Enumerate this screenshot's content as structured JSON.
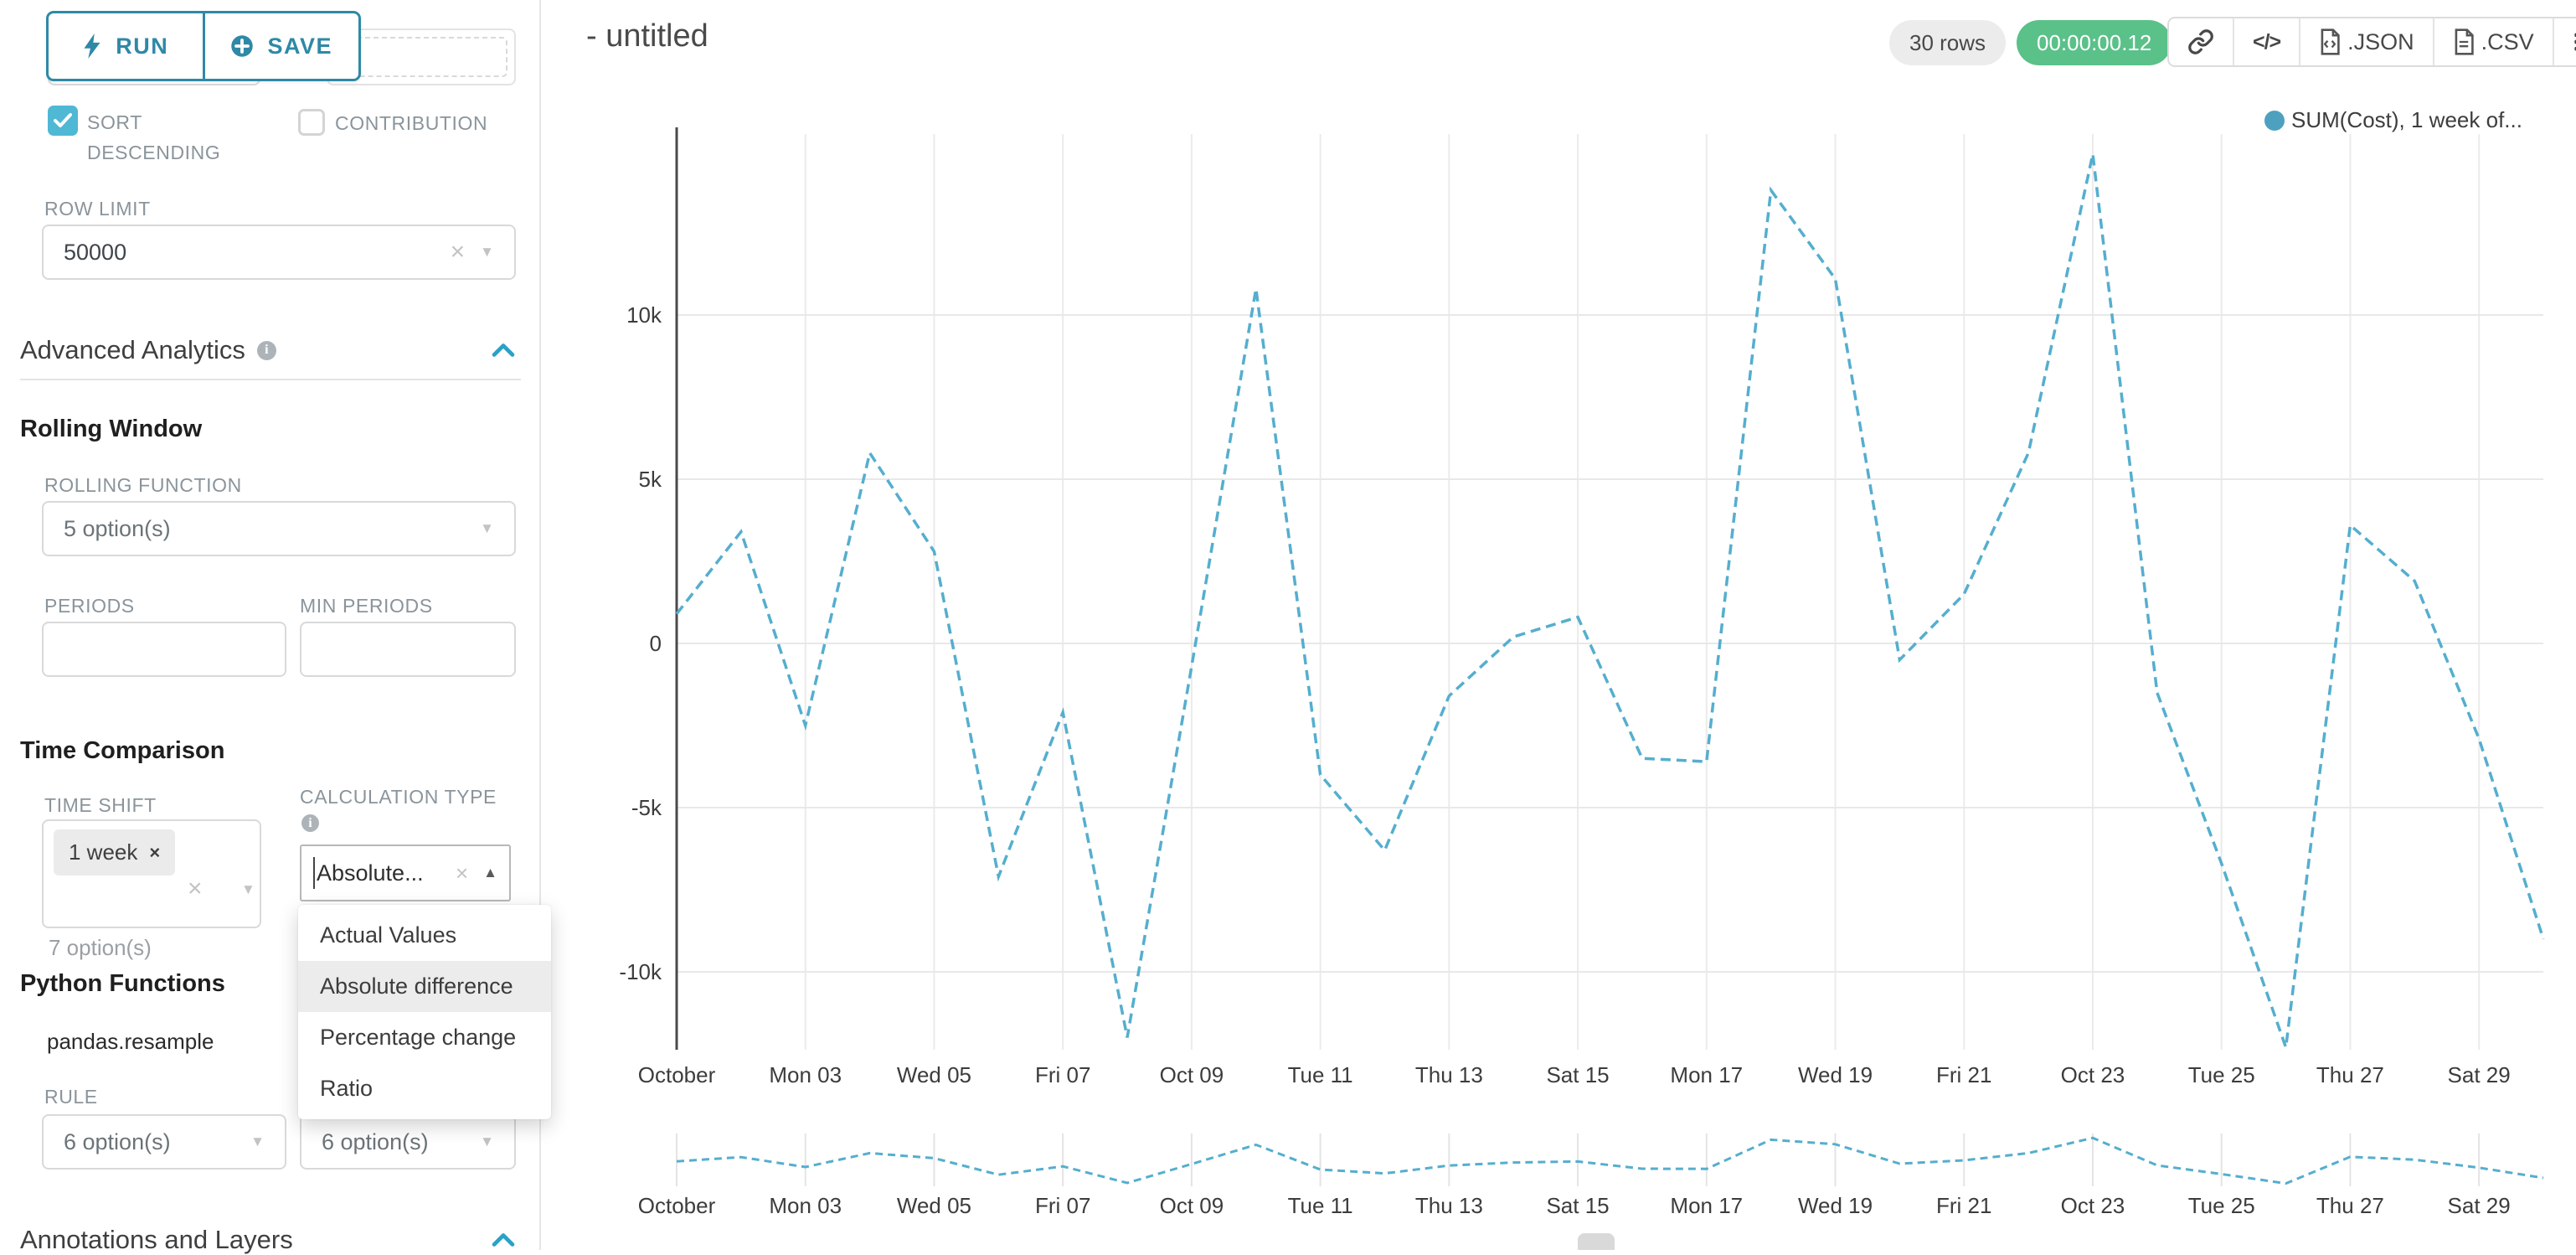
{
  "icons": {
    "info": "i",
    "clear": "×",
    "caret_down": "▼",
    "caret_up": "▲",
    "code": "</>"
  },
  "sidebar": {
    "run_label": "RUN",
    "save_label": "SAVE",
    "partial_select_value": "7 option(s)",
    "sort_descending_label": "SORT DESCENDING",
    "contribution_label": "CONTRIBUTION",
    "row_limit_label": "ROW LIMIT",
    "row_limit_value": "50000",
    "advanced_analytics_title": "Advanced Analytics",
    "rolling_window_title": "Rolling Window",
    "rolling_function_label": "ROLLING FUNCTION",
    "rolling_function_value": "5 option(s)",
    "periods_label": "PERIODS",
    "min_periods_label": "MIN PERIODS",
    "time_comparison_title": "Time Comparison",
    "time_shift_label": "TIME SHIFT",
    "time_shift_tag": "1 week",
    "time_shift_hint": "7 option(s)",
    "calculation_type_label": "CALCULATION TYPE",
    "calculation_type_value": "Absolute...",
    "menu": {
      "items": [
        "Actual Values",
        "Absolute difference",
        "Percentage change",
        "Ratio"
      ],
      "selected": "Absolute difference"
    },
    "python_functions_title": "Python Functions",
    "pandas_resample_label": "pandas.resample",
    "rule_label": "RULE",
    "rule_value": "6 option(s)",
    "rule_value_2": "6 option(s)",
    "annotations_title": "Annotations and Layers"
  },
  "header": {
    "title": "- untitled",
    "rows_badge": "30 rows",
    "timer_badge": "00:00:00.12",
    "json_label": ".JSON",
    "csv_label": ".CSV"
  },
  "chart_data": {
    "type": "line",
    "line_style": "dashed",
    "grid": true,
    "legend": {
      "label": "SUM(Cost), 1 week of...",
      "position": "top-right"
    },
    "series": [
      {
        "name": "SUM(Cost), 1 week offset",
        "values": [
          900,
          3400,
          -2500,
          5800,
          2800,
          -7100,
          -2100,
          -12000,
          -700,
          10800,
          -4000,
          -6300,
          -1600,
          200,
          800,
          -3500,
          -3600,
          13800,
          11100,
          -500,
          1500,
          5800,
          14900,
          -1500,
          -6700,
          -12300,
          3600,
          1900,
          -2900,
          -9000
        ]
      }
    ],
    "n_points": 30,
    "x_tick_labels": [
      "October",
      "Mon 03",
      "Wed 05",
      "Fri 07",
      "Oct 09",
      "Tue 11",
      "Thu 13",
      "Sat 15",
      "Mon 17",
      "Wed 19",
      "Fri 21",
      "Oct 23",
      "Tue 25",
      "Thu 27",
      "Sat 29"
    ],
    "x_tick_positions": [
      0,
      2,
      4,
      6,
      8,
      10,
      12,
      14,
      16,
      18,
      20,
      22,
      24,
      26,
      28
    ],
    "y_ticks": {
      "labels": [
        "10k",
        "5k",
        "0",
        "-5k",
        "-10k"
      ],
      "values": [
        10000,
        5000,
        0,
        -5000,
        -10000
      ]
    },
    "ylim": [
      -13000,
      15500
    ],
    "mini_chart": true,
    "colors": {
      "line": "#55aece",
      "legend_dot": "#4da1bf",
      "grid": "#ebebeb",
      "axis": "#4a4a4a",
      "label": "#3c3c3c",
      "handle": "#d9d9d9"
    }
  }
}
